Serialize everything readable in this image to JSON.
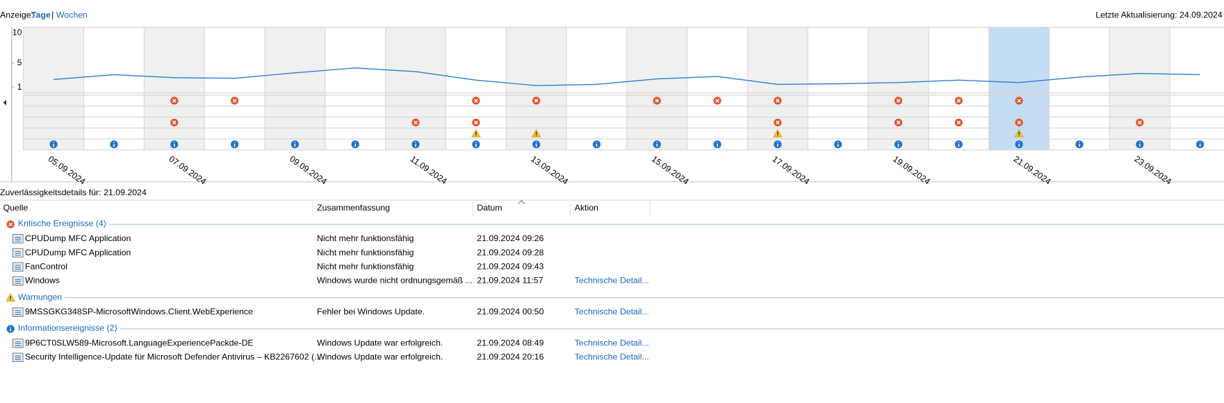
{
  "header": {
    "view_label": "Anzeige:",
    "views": [
      "Tage",
      "Wochen"
    ],
    "separator": "|",
    "last_update": "Letzte Aktualisierung: 24.09.2024"
  },
  "chart_data": {
    "type": "line",
    "ylim": [
      1,
      10
    ],
    "yticks": [
      1,
      5,
      10
    ],
    "categories": [
      "05.09.2024",
      null,
      "07.09.2024",
      null,
      "09.09.2024",
      null,
      "11.09.2024",
      null,
      "13.09.2024",
      null,
      "15.09.2024",
      null,
      "17.09.2024",
      null,
      "19.09.2024",
      null,
      "21.09.2024",
      null,
      "23.09.2024",
      null
    ],
    "values": [
      2.3,
      3.1,
      2.6,
      2.5,
      3.4,
      4.2,
      3.6,
      2.2,
      1.3,
      1.5,
      2.4,
      2.8,
      1.5,
      1.6,
      1.8,
      2.2,
      1.8,
      2.7,
      3.3,
      3.1
    ],
    "color": "#2a7bd4",
    "selected_index": 16,
    "event_rows": [
      {
        "icon": "error",
        "events": [
          false,
          false,
          true,
          true,
          false,
          false,
          false,
          true,
          true,
          false,
          true,
          true,
          true,
          false,
          true,
          true,
          true,
          false,
          false,
          false
        ]
      },
      {
        "icon": "error",
        "events": [
          false,
          false,
          false,
          false,
          false,
          false,
          false,
          false,
          false,
          false,
          false,
          false,
          false,
          false,
          false,
          false,
          false,
          false,
          false,
          false
        ]
      },
      {
        "icon": "error",
        "events": [
          false,
          false,
          true,
          false,
          false,
          false,
          true,
          true,
          false,
          false,
          false,
          false,
          true,
          false,
          true,
          true,
          true,
          false,
          true,
          false
        ]
      },
      {
        "icon": "warning",
        "events": [
          false,
          false,
          false,
          false,
          false,
          false,
          false,
          true,
          true,
          false,
          false,
          false,
          true,
          false,
          false,
          false,
          true,
          false,
          false,
          false
        ]
      },
      {
        "icon": "info",
        "events": [
          true,
          true,
          true,
          true,
          true,
          true,
          true,
          true,
          true,
          true,
          true,
          true,
          true,
          true,
          true,
          true,
          true,
          true,
          true,
          true
        ]
      }
    ]
  },
  "details": {
    "title": "Zuverlässigkeitsdetails für: 21.09.2024",
    "columns": [
      "Quelle",
      "Zusammenfassung",
      "Datum",
      "Aktion"
    ],
    "groups": [
      {
        "title": "Kritische Ereignisse (4)",
        "icon": "error",
        "rows": [
          {
            "source": "CPUDump MFC Application",
            "summary": "Nicht mehr funktionsfähig",
            "date": "21.09.2024 09:26"
          },
          {
            "source": "CPUDump MFC Application",
            "summary": "Nicht mehr funktionsfähig",
            "date": "21.09.2024 09:28"
          },
          {
            "source": "FanControl",
            "summary": "Nicht mehr funktionsfähig",
            "date": "21.09.2024 09:43"
          },
          {
            "source": "Windows",
            "summary": "Windows wurde nicht ordnungsgemäß ...",
            "date": "21.09.2024 11:57",
            "action": "Technische Detail..."
          }
        ]
      },
      {
        "title": "Warnungen",
        "icon": "warning",
        "rows": [
          {
            "source": "9MSSGKG348SP-MicrosoftWindows.Client.WebExperience",
            "summary": "Fehler bei Windows Update.",
            "date": "21.09.2024 00:50",
            "action": "Technische Detail..."
          }
        ]
      },
      {
        "title": "Informationsereignisse (2)",
        "icon": "info",
        "rows": [
          {
            "source": "9P6CT0SLW589-Microsoft.LanguageExperiencePackde-DE",
            "summary": "Windows Update war erfolgreich.",
            "date": "21.09.2024 08:49",
            "action": "Technische Detail..."
          },
          {
            "source": "Security Intelligence-Update für Microsoft Defender Antivirus – KB2267602 (...",
            "summary": "Windows Update war erfolgreich.",
            "date": "21.09.2024 20:16",
            "action": "Technische Detail..."
          }
        ]
      }
    ]
  }
}
